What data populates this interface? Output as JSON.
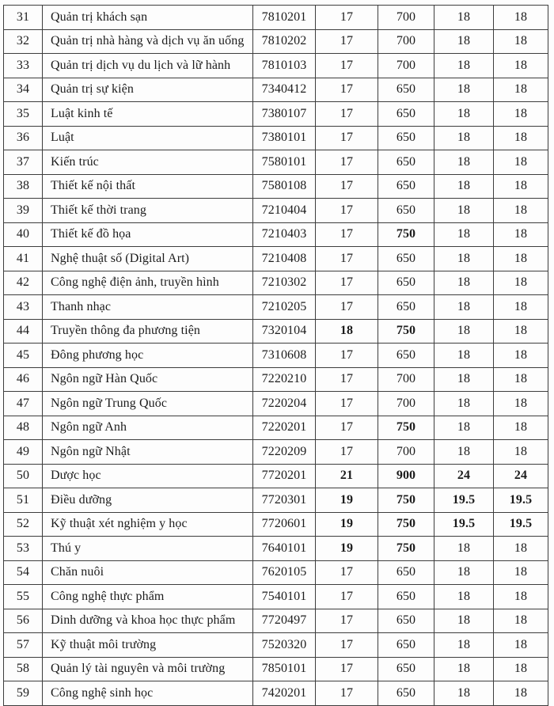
{
  "table": {
    "description": "Admission scores table rows 31-59 (major list with codes and benchmark scores)",
    "fields": [
      "stt",
      "name",
      "code",
      "s1",
      "s2",
      "s3",
      "s4"
    ],
    "rows": [
      {
        "stt": "31",
        "name": "Quản trị khách sạn",
        "code": "7810201",
        "s1": "17",
        "s2": "700",
        "s3": "18",
        "s4": "18",
        "bold": []
      },
      {
        "stt": "32",
        "name": "Quản trị nhà hàng và dịch vụ ăn uống",
        "code": "7810202",
        "s1": "17",
        "s2": "700",
        "s3": "18",
        "s4": "18",
        "bold": []
      },
      {
        "stt": "33",
        "name": "Quản trị dịch vụ du lịch và lữ hành",
        "code": "7810103",
        "s1": "17",
        "s2": "700",
        "s3": "18",
        "s4": "18",
        "bold": []
      },
      {
        "stt": "34",
        "name": "Quản trị sự kiện",
        "code": "7340412",
        "s1": "17",
        "s2": "650",
        "s3": "18",
        "s4": "18",
        "bold": []
      },
      {
        "stt": "35",
        "name": "Luật kinh tế",
        "code": "7380107",
        "s1": "17",
        "s2": "650",
        "s3": "18",
        "s4": "18",
        "bold": []
      },
      {
        "stt": "36",
        "name": "Luật",
        "code": "7380101",
        "s1": "17",
        "s2": "650",
        "s3": "18",
        "s4": "18",
        "bold": []
      },
      {
        "stt": "37",
        "name": "Kiến trúc",
        "code": "7580101",
        "s1": "17",
        "s2": "650",
        "s3": "18",
        "s4": "18",
        "bold": []
      },
      {
        "stt": "38",
        "name": "Thiết kế nội thất",
        "code": "7580108",
        "s1": "17",
        "s2": "650",
        "s3": "18",
        "s4": "18",
        "bold": []
      },
      {
        "stt": "39",
        "name": "Thiết kế thời trang",
        "code": "7210404",
        "s1": "17",
        "s2": "650",
        "s3": "18",
        "s4": "18",
        "bold": []
      },
      {
        "stt": "40",
        "name": "Thiết kế đồ họa",
        "code": "7210403",
        "s1": "17",
        "s2": "750",
        "s3": "18",
        "s4": "18",
        "bold": [
          "s2"
        ]
      },
      {
        "stt": "41",
        "name": "Nghệ thuật số (Digital Art)",
        "code": "7210408",
        "s1": "17",
        "s2": "650",
        "s3": "18",
        "s4": "18",
        "bold": []
      },
      {
        "stt": "42",
        "name": "Công nghệ điện ảnh, truyền hình",
        "code": "7210302",
        "s1": "17",
        "s2": "650",
        "s3": "18",
        "s4": "18",
        "bold": []
      },
      {
        "stt": "43",
        "name": "Thanh nhạc",
        "code": "7210205",
        "s1": "17",
        "s2": "650",
        "s3": "18",
        "s4": "18",
        "bold": []
      },
      {
        "stt": "44",
        "name": "Truyền thông đa phương tiện",
        "code": "7320104",
        "s1": "18",
        "s2": "750",
        "s3": "18",
        "s4": "18",
        "bold": [
          "s1",
          "s2"
        ]
      },
      {
        "stt": "45",
        "name": "Đông phương học",
        "code": "7310608",
        "s1": "17",
        "s2": "650",
        "s3": "18",
        "s4": "18",
        "bold": []
      },
      {
        "stt": "46",
        "name": "Ngôn ngữ Hàn Quốc",
        "code": "7220210",
        "s1": "17",
        "s2": "700",
        "s3": "18",
        "s4": "18",
        "bold": []
      },
      {
        "stt": "47",
        "name": "Ngôn ngữ Trung Quốc",
        "code": "7220204",
        "s1": "17",
        "s2": "700",
        "s3": "18",
        "s4": "18",
        "bold": []
      },
      {
        "stt": "48",
        "name": "Ngôn ngữ Anh",
        "code": "7220201",
        "s1": "17",
        "s2": "750",
        "s3": "18",
        "s4": "18",
        "bold": [
          "s2"
        ]
      },
      {
        "stt": "49",
        "name": "Ngôn ngữ Nhật",
        "code": "7220209",
        "s1": "17",
        "s2": "700",
        "s3": "18",
        "s4": "18",
        "bold": []
      },
      {
        "stt": "50",
        "name": "Dược học",
        "code": "7720201",
        "s1": "21",
        "s2": "900",
        "s3": "24",
        "s4": "24",
        "bold": [
          "s1",
          "s2",
          "s3",
          "s4"
        ]
      },
      {
        "stt": "51",
        "name": "Điều dưỡng",
        "code": "7720301",
        "s1": "19",
        "s2": "750",
        "s3": "19.5",
        "s4": "19.5",
        "bold": [
          "s1",
          "s2",
          "s3",
          "s4"
        ]
      },
      {
        "stt": "52",
        "name": "Kỹ thuật xét nghiệm y học",
        "code": "7720601",
        "s1": "19",
        "s2": "750",
        "s3": "19.5",
        "s4": "19.5",
        "bold": [
          "s1",
          "s2",
          "s3",
          "s4"
        ]
      },
      {
        "stt": "53",
        "name": "Thú y",
        "code": "7640101",
        "s1": "19",
        "s2": "750",
        "s3": "18",
        "s4": "18",
        "bold": [
          "s1",
          "s2"
        ]
      },
      {
        "stt": "54",
        "name": "Chăn nuôi",
        "code": "7620105",
        "s1": "17",
        "s2": "650",
        "s3": "18",
        "s4": "18",
        "bold": []
      },
      {
        "stt": "55",
        "name": "Công nghệ thực phẩm",
        "code": "7540101",
        "s1": "17",
        "s2": "650",
        "s3": "18",
        "s4": "18",
        "bold": []
      },
      {
        "stt": "56",
        "name": "Dinh dưỡng và khoa học thực phẩm",
        "code": "7720497",
        "s1": "17",
        "s2": "650",
        "s3": "18",
        "s4": "18",
        "bold": []
      },
      {
        "stt": "57",
        "name": "Kỹ thuật môi trường",
        "code": "7520320",
        "s1": "17",
        "s2": "650",
        "s3": "18",
        "s4": "18",
        "bold": []
      },
      {
        "stt": "58",
        "name": "Quản lý tài nguyên và môi trường",
        "code": "7850101",
        "s1": "17",
        "s2": "650",
        "s3": "18",
        "s4": "18",
        "bold": []
      },
      {
        "stt": "59",
        "name": "Công nghệ sinh học",
        "code": "7420201",
        "s1": "17",
        "s2": "650",
        "s3": "18",
        "s4": "18",
        "bold": []
      }
    ]
  }
}
